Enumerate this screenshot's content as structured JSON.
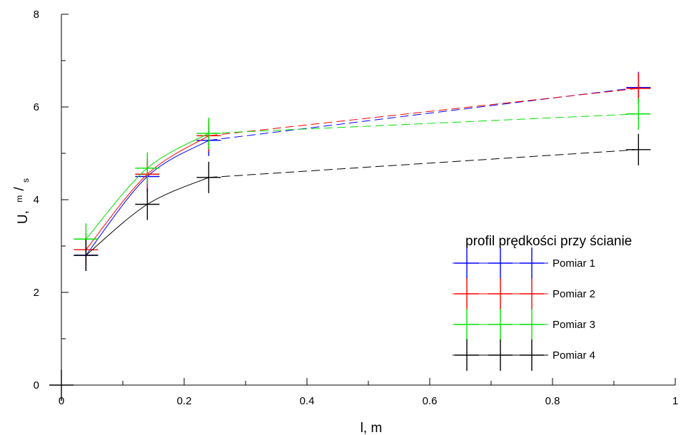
{
  "chart_data": {
    "type": "line",
    "title": "",
    "xlabel": "l, m",
    "ylabel": {
      "main": "U,",
      "unit_num": "m",
      "unit_sep": "/",
      "unit_den": "s"
    },
    "xlim": [
      0,
      1
    ],
    "ylim": [
      0,
      8
    ],
    "xticks": [
      0,
      0.2,
      0.4,
      0.6,
      0.8,
      1
    ],
    "xtick_labels": [
      "0",
      "0.2",
      "0.4",
      "0.6",
      "0.8",
      "1"
    ],
    "yticks": [
      0,
      2,
      4,
      6,
      8
    ],
    "ytick_labels": [
      "0",
      "2",
      "4",
      "6",
      "8"
    ],
    "grid": false,
    "origin_marker": {
      "x": 0,
      "y": 0
    },
    "legend": {
      "title": "profil prędkości przy ścianie",
      "position": "right"
    },
    "series": [
      {
        "name": "Pomiar 1",
        "color": "#0000ff",
        "x": [
          0.04,
          0.14,
          0.24,
          0.94
        ],
        "y": [
          2.8,
          4.5,
          5.28,
          6.42
        ]
      },
      {
        "name": "Pomiar 2",
        "color": "#ff0000",
        "x": [
          0.04,
          0.14,
          0.24,
          0.94
        ],
        "y": [
          2.92,
          4.55,
          5.38,
          6.4
        ]
      },
      {
        "name": "Pomiar 3",
        "color": "#00e000",
        "x": [
          0.04,
          0.14,
          0.24,
          0.94
        ],
        "y": [
          3.15,
          4.68,
          5.43,
          5.85
        ]
      },
      {
        "name": "Pomiar 4",
        "color": "#000000",
        "x": [
          0.04,
          0.14,
          0.24,
          0.94
        ],
        "y": [
          2.8,
          3.9,
          4.48,
          5.08
        ]
      }
    ]
  }
}
